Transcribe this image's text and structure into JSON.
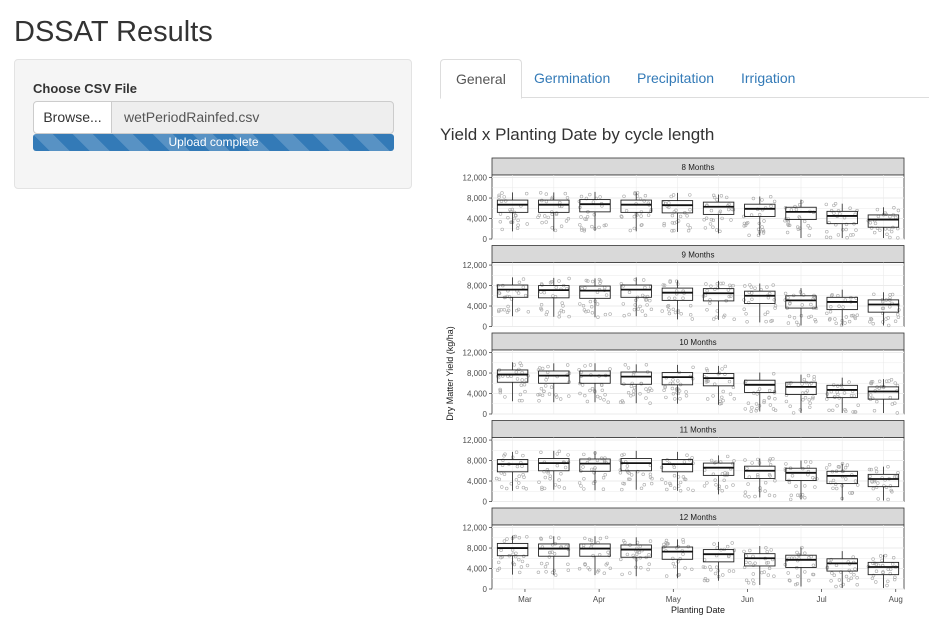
{
  "page": {
    "title": "DSSAT Results"
  },
  "sidebar": {
    "file_input_label": "Choose CSV File",
    "browse_label": "Browse...",
    "file_name": "wetPeriodRainfed.csv",
    "progress_text": "Upload complete",
    "progress_fraction": 1.0
  },
  "tabs": [
    {
      "label": "General",
      "active": true
    },
    {
      "label": "Germination",
      "active": false
    },
    {
      "label": "Precipitation",
      "active": false
    },
    {
      "label": "Irrigation",
      "active": false
    }
  ],
  "plot": {
    "title": "Yield x Planting Date by cycle length"
  },
  "colors": {
    "accent": "#337ab7",
    "strip_bg": "#d9d9d9",
    "grid": "#ebebeb",
    "point": "#aaaaaa"
  },
  "chart_data": {
    "type": "boxplot",
    "xlabel": "Planting Date",
    "ylabel": "Dry Matter Yield (kg/ha)",
    "x_tick_labels": [
      "Mar",
      "Apr",
      "May",
      "Jun",
      "Jul",
      "Aug"
    ],
    "y_tick_labels": [
      "0",
      "4,000",
      "8,000",
      "12,000"
    ],
    "ylim": [
      0,
      12500
    ],
    "grid": true,
    "facets": [
      {
        "label": "8 Months",
        "medians": [
          6700,
          6700,
          6800,
          6700,
          6600,
          6300,
          5900,
          5300,
          4500,
          3800
        ]
      },
      {
        "label": "9 Months",
        "medians": [
          7200,
          7100,
          7000,
          7200,
          6600,
          6500,
          6000,
          5100,
          4800,
          4300
        ]
      },
      {
        "label": "10 Months",
        "medians": [
          7700,
          7500,
          7500,
          7300,
          7200,
          7000,
          5700,
          5300,
          4700,
          4400
        ]
      },
      {
        "label": "11 Months",
        "medians": [
          7300,
          7500,
          7400,
          7500,
          7300,
          6600,
          6000,
          5600,
          5000,
          4400
        ]
      },
      {
        "label": "12 Months",
        "medians": [
          8000,
          7900,
          7900,
          7700,
          7300,
          6800,
          6000,
          5700,
          5000,
          4300
        ]
      }
    ]
  }
}
